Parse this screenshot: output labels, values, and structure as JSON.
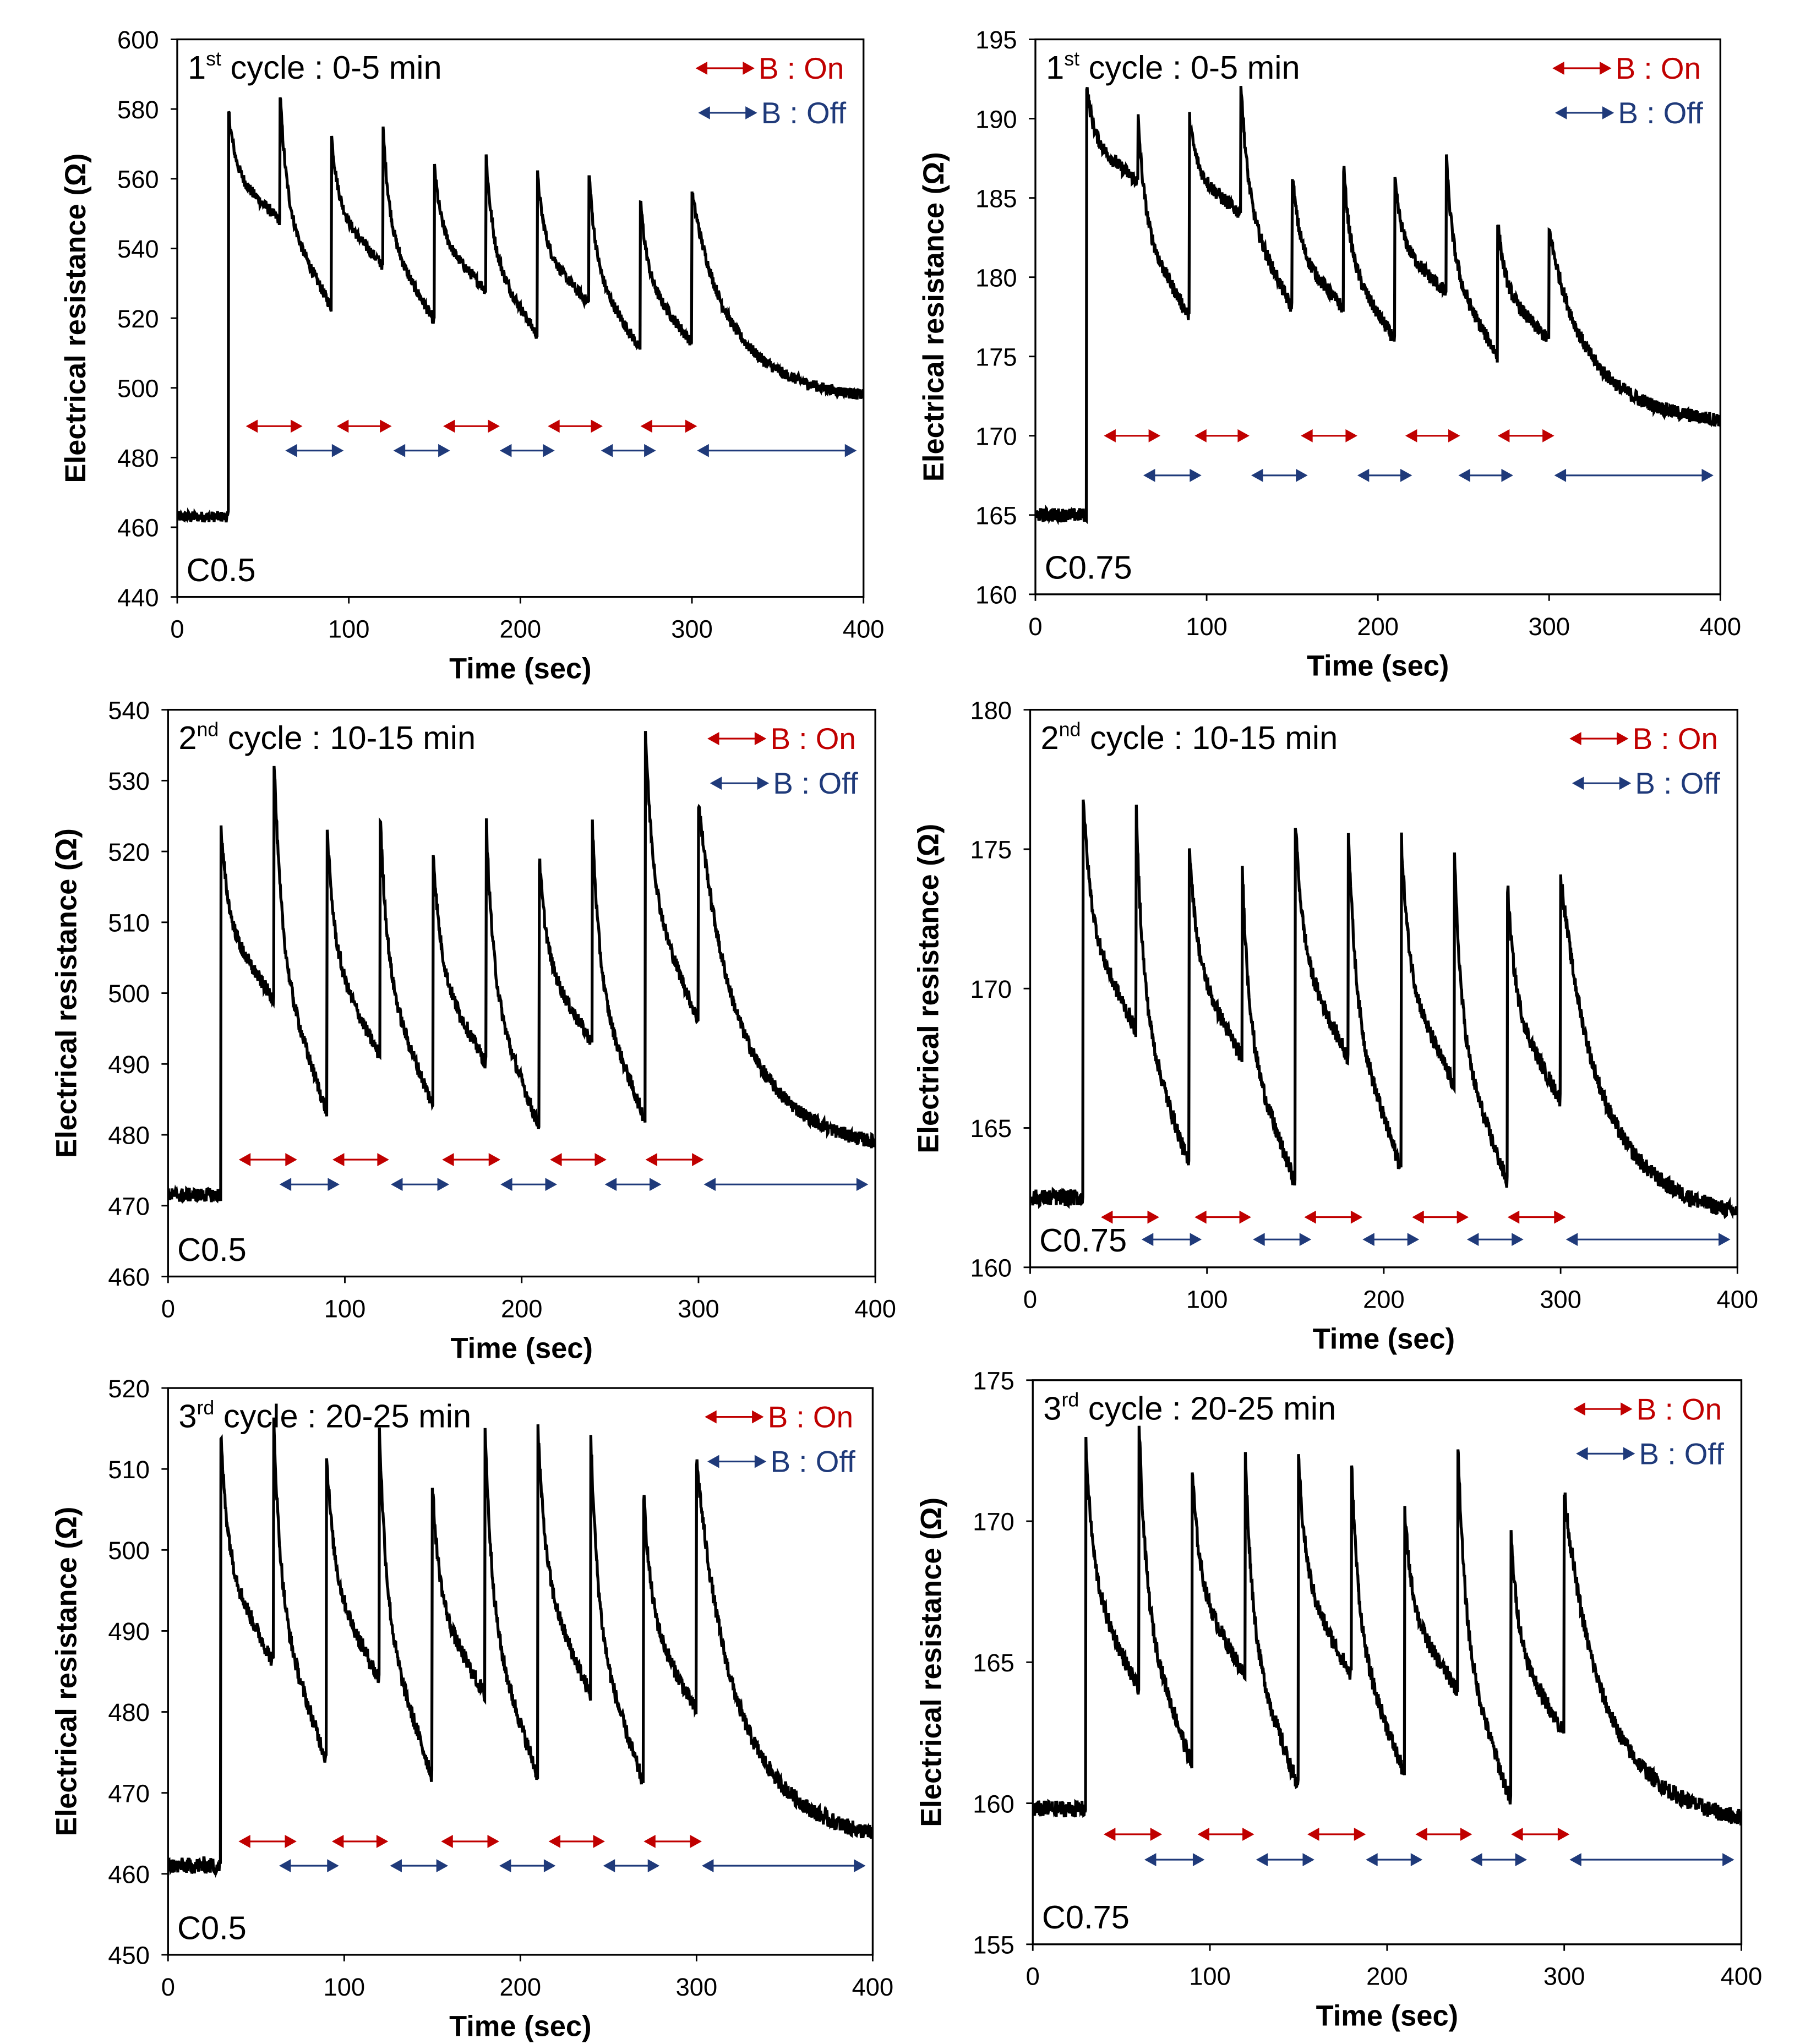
{
  "colors": {
    "on": "#c00000",
    "off": "#1f3a7a",
    "trace": "#000000"
  },
  "chart_data": [
    {
      "type": "line",
      "title_num": "1",
      "title_sup": "st",
      "title_rest": " cycle : 0-5 min",
      "sample": "C0.5",
      "xlabel": "Time (sec)",
      "ylabel": "Electrical  resistance  (Ω)",
      "xlim": [
        0,
        400
      ],
      "xticks": [
        0,
        100,
        200,
        300,
        400
      ],
      "ylim": [
        440,
        600
      ],
      "yticks": [
        440,
        460,
        480,
        500,
        520,
        540,
        560,
        580,
        600
      ],
      "legend": {
        "on": "B : On",
        "off": "B : Off",
        "placement": "top-right"
      },
      "series": {
        "baseline": 463,
        "step_time": 30,
        "spike_times": [
          30,
          60,
          90,
          120,
          150,
          180,
          210,
          240,
          270,
          300
        ],
        "peaks": [
          579,
          584,
          572,
          574,
          563,
          567,
          561,
          562,
          554,
          556
        ],
        "troughs": [
          548,
          523,
          535,
          519,
          528,
          515,
          524,
          511,
          513
        ],
        "end": 498,
        "noise": 1.6
      },
      "on_intervals": [
        [
          40,
          73
        ],
        [
          93,
          125
        ],
        [
          155,
          188
        ],
        [
          216,
          248
        ],
        [
          270,
          303
        ]
      ],
      "on_level": 489,
      "off_intervals": [
        [
          63,
          97
        ],
        [
          126,
          159
        ],
        [
          188,
          220
        ],
        [
          247,
          279
        ],
        [
          303,
          396
        ]
      ],
      "off_level": 482
    },
    {
      "type": "line",
      "title_num": "1",
      "title_sup": "st",
      "title_rest": " cycle : 0-5 min",
      "sample": "C0.75",
      "xlabel": "Time (sec)",
      "ylabel": "Electrical  resistance  (Ω)",
      "xlim": [
        0,
        400
      ],
      "xticks": [
        0,
        100,
        200,
        300,
        400
      ],
      "ylim": [
        160,
        195
      ],
      "yticks": [
        160,
        165,
        170,
        175,
        180,
        185,
        190,
        195
      ],
      "legend": {
        "on": "B : On",
        "off": "B : Off",
        "placement": "top-right"
      },
      "series": {
        "baseline": 165,
        "step_time": 30,
        "spike_times": [
          30,
          60,
          90,
          120,
          150,
          180,
          210,
          240,
          270,
          300
        ],
        "peaks": [
          192,
          190,
          190,
          192.5,
          186.5,
          187,
          186,
          187.5,
          183.5,
          183
        ],
        "troughs": [
          186,
          177.5,
          184,
          178,
          178,
          176,
          179,
          175,
          176
        ],
        "end": 171,
        "noise": 0.45
      },
      "on_intervals": [
        [
          40,
          73
        ],
        [
          93,
          125
        ],
        [
          155,
          188
        ],
        [
          216,
          248
        ],
        [
          270,
          303
        ]
      ],
      "on_level": 170,
      "off_intervals": [
        [
          63,
          97
        ],
        [
          126,
          159
        ],
        [
          188,
          220
        ],
        [
          247,
          279
        ],
        [
          303,
          396
        ]
      ],
      "off_level": 167.5
    },
    {
      "type": "line",
      "title_num": "2",
      "title_sup": "nd",
      "title_rest": " cycle : 10-15 min",
      "sample": "C0.5",
      "xlabel": "Time (sec)",
      "ylabel": "Electrical  resistance  (Ω)",
      "xlim": [
        0,
        400
      ],
      "xticks": [
        0,
        100,
        200,
        300,
        400
      ],
      "ylim": [
        460,
        540
      ],
      "yticks": [
        460,
        470,
        480,
        490,
        500,
        510,
        520,
        530,
        540
      ],
      "legend": {
        "on": "B : On",
        "off": "B : Off",
        "placement": "top-right"
      },
      "series": {
        "baseline": 471.5,
        "step_time": 30,
        "spike_times": [
          30,
          60,
          90,
          120,
          150,
          180,
          210,
          240,
          270,
          300
        ],
        "peaks": [
          523,
          533,
          523,
          525,
          520,
          524,
          519,
          524,
          537,
          527
        ],
        "troughs": [
          499,
          483,
          491,
          484,
          490,
          481,
          493,
          482,
          496
        ],
        "end": 479,
        "noise": 1.0
      },
      "on_intervals": [
        [
          40,
          73
        ],
        [
          93,
          125
        ],
        [
          155,
          188
        ],
        [
          216,
          248
        ],
        [
          270,
          303
        ]
      ],
      "on_level": 476.5,
      "off_intervals": [
        [
          63,
          97
        ],
        [
          126,
          159
        ],
        [
          188,
          220
        ],
        [
          247,
          279
        ],
        [
          303,
          396
        ]
      ],
      "off_level": 473
    },
    {
      "type": "line",
      "title_num": "2",
      "title_sup": "nd",
      "title_rest": " cycle : 10-15 min",
      "sample": "C0.75",
      "xlabel": "Time (sec)",
      "ylabel": "Electrical  resistance  (Ω)",
      "xlim": [
        0,
        400
      ],
      "xticks": [
        0,
        100,
        200,
        300,
        400
      ],
      "ylim": [
        160,
        180
      ],
      "yticks": [
        160,
        165,
        170,
        175,
        180
      ],
      "legend": {
        "on": "B : On",
        "off": "B : Off",
        "placement": "top-right"
      },
      "series": {
        "baseline": 162.5,
        "step_time": 30,
        "spike_times": [
          30,
          60,
          90,
          120,
          150,
          180,
          210,
          240,
          270,
          300
        ],
        "peaks": [
          177,
          176.3,
          175.3,
          174.3,
          176,
          175.8,
          175.3,
          174.6,
          173.7,
          174.1
        ],
        "troughs": [
          168.5,
          163.6,
          167.5,
          163,
          167.5,
          163.5,
          166.5,
          163,
          166
        ],
        "end": 162,
        "noise": 0.3
      },
      "on_intervals": [
        [
          40,
          73
        ],
        [
          93,
          125
        ],
        [
          155,
          188
        ],
        [
          216,
          248
        ],
        [
          270,
          303
        ]
      ],
      "on_level": 161.8,
      "off_intervals": [
        [
          63,
          97
        ],
        [
          126,
          159
        ],
        [
          188,
          220
        ],
        [
          247,
          279
        ],
        [
          303,
          396
        ]
      ],
      "off_level": 161
    },
    {
      "type": "line",
      "title_num": "3",
      "title_sup": "rd",
      "title_rest": " cycle : 20-25 min",
      "sample": "C0.5",
      "xlabel": "Time (sec)",
      "ylabel": "Electrical  resistance  (Ω)",
      "xlim": [
        0,
        400
      ],
      "xticks": [
        0,
        100,
        200,
        300,
        400
      ],
      "ylim": [
        450,
        520
      ],
      "yticks": [
        450,
        460,
        470,
        480,
        490,
        500,
        510,
        520
      ],
      "legend": {
        "on": "B : On",
        "off": "B : Off",
        "placement": "top-right"
      },
      "series": {
        "baseline": 461,
        "step_time": 30,
        "spike_times": [
          30,
          60,
          90,
          120,
          150,
          180,
          210,
          240,
          270,
          300
        ],
        "peaks": [
          514,
          516,
          512,
          515,
          508,
          515,
          515,
          514,
          507,
          511
        ],
        "troughs": [
          486,
          474,
          484,
          472,
          482,
          472,
          482,
          471,
          480
        ],
        "end": 465,
        "noise": 1.0
      },
      "on_intervals": [
        [
          40,
          73
        ],
        [
          93,
          125
        ],
        [
          155,
          188
        ],
        [
          216,
          248
        ],
        [
          270,
          303
        ]
      ],
      "on_level": 464,
      "off_intervals": [
        [
          63,
          97
        ],
        [
          126,
          159
        ],
        [
          188,
          220
        ],
        [
          247,
          279
        ],
        [
          303,
          396
        ]
      ],
      "off_level": 461
    },
    {
      "type": "line",
      "title_num": "3",
      "title_sup": "rd",
      "title_rest": " cycle : 20-25 min",
      "sample": "C0.75",
      "xlabel": "Time (sec)",
      "ylabel": "Electrical  resistance  (Ω)",
      "xlim": [
        0,
        400
      ],
      "xticks": [
        0,
        100,
        200,
        300,
        400
      ],
      "ylim": [
        155,
        175
      ],
      "yticks": [
        155,
        160,
        165,
        170,
        175
      ],
      "legend": {
        "on": "B : On",
        "off": "B : Off",
        "placement": "top-right"
      },
      "series": {
        "baseline": 159.8,
        "step_time": 30,
        "spike_times": [
          30,
          60,
          90,
          120,
          150,
          180,
          210,
          240,
          270,
          300
        ],
        "peaks": [
          172.7,
          173.4,
          171.8,
          172.3,
          172.2,
          172,
          170.3,
          172.8,
          169.5,
          171
        ],
        "troughs": [
          164,
          161.3,
          164.5,
          160.5,
          164.5,
          161,
          164,
          160,
          162.5
        ],
        "end": 159.5,
        "noise": 0.3
      },
      "on_intervals": [
        [
          40,
          73
        ],
        [
          93,
          125
        ],
        [
          155,
          188
        ],
        [
          216,
          248
        ],
        [
          270,
          303
        ]
      ],
      "on_level": 158.9,
      "off_intervals": [
        [
          63,
          97
        ],
        [
          126,
          159
        ],
        [
          188,
          220
        ],
        [
          247,
          279
        ],
        [
          303,
          396
        ]
      ],
      "off_level": 158
    }
  ]
}
